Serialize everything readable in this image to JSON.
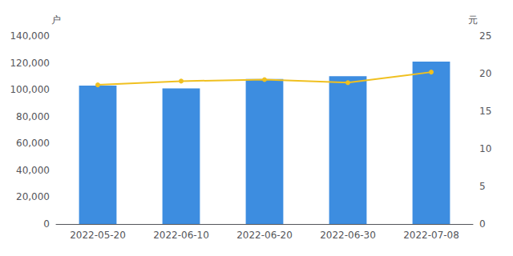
{
  "chart_data": {
    "type": "bar",
    "categories": [
      "2022-05-20",
      "2022-06-10",
      "2022-06-20",
      "2022-06-30",
      "2022-07-08"
    ],
    "ylabel": "户",
    "y2label": "元",
    "ylim": [
      0,
      140000
    ],
    "yticks": [
      0,
      {
        "value": 20000,
        "label": "20,000"
      },
      {
        "value": 40000,
        "label": "40,000"
      },
      {
        "value": 60000,
        "label": "60,000"
      },
      {
        "value": 80000,
        "label": "80,000"
      },
      {
        "value": 100000,
        "label": "100,000"
      },
      {
        "value": 120000,
        "label": "120,000"
      },
      {
        "value": 140000,
        "label": "140,000"
      }
    ],
    "y2lim": [
      0,
      25
    ],
    "y2ticks": [
      0,
      5,
      10,
      15,
      20,
      25
    ],
    "grid": false,
    "series": [
      {
        "type": "bar",
        "color": "#3d8de0",
        "values": [
          103000,
          101000,
          108000,
          110000,
          121000
        ]
      },
      {
        "type": "line",
        "axis": "y2",
        "color": "#f0c020",
        "marker": "circle",
        "values": [
          18.5,
          19.0,
          19.2,
          18.8,
          20.2
        ]
      }
    ]
  }
}
